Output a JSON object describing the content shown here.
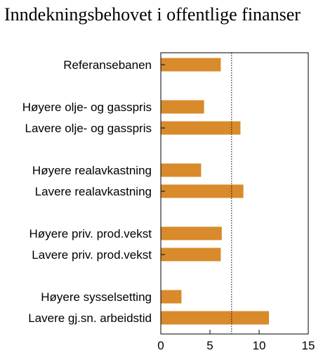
{
  "chart_data": {
    "type": "bar",
    "orientation": "horizontal",
    "title": "Inndekningsbehovet i offentlige finanser",
    "categories": [
      "Referansebanen",
      "Høyere olje- og gasspris",
      "Lavere olje- og gasspris",
      "Høyere realavkastning",
      "Lavere realavkastning",
      "Høyere priv. prod.vekst",
      "Lavere priv. prod.vekst",
      "Høyere sysselsetting",
      "Lavere gj.sn. arbeidstid"
    ],
    "groups": [
      [
        0
      ],
      [
        1,
        2
      ],
      [
        3,
        4
      ],
      [
        5,
        6
      ],
      [
        7,
        8
      ]
    ],
    "values": [
      6.1,
      4.4,
      8.1,
      4.1,
      8.4,
      6.2,
      6.1,
      2.1,
      11.0
    ],
    "xlim": [
      0,
      15
    ],
    "xticks": [
      "0",
      "5",
      "10",
      "15"
    ],
    "reference_line": 7.2,
    "xlabel": "",
    "ylabel": "",
    "grid": false,
    "bar_color": "#d98a2b"
  }
}
